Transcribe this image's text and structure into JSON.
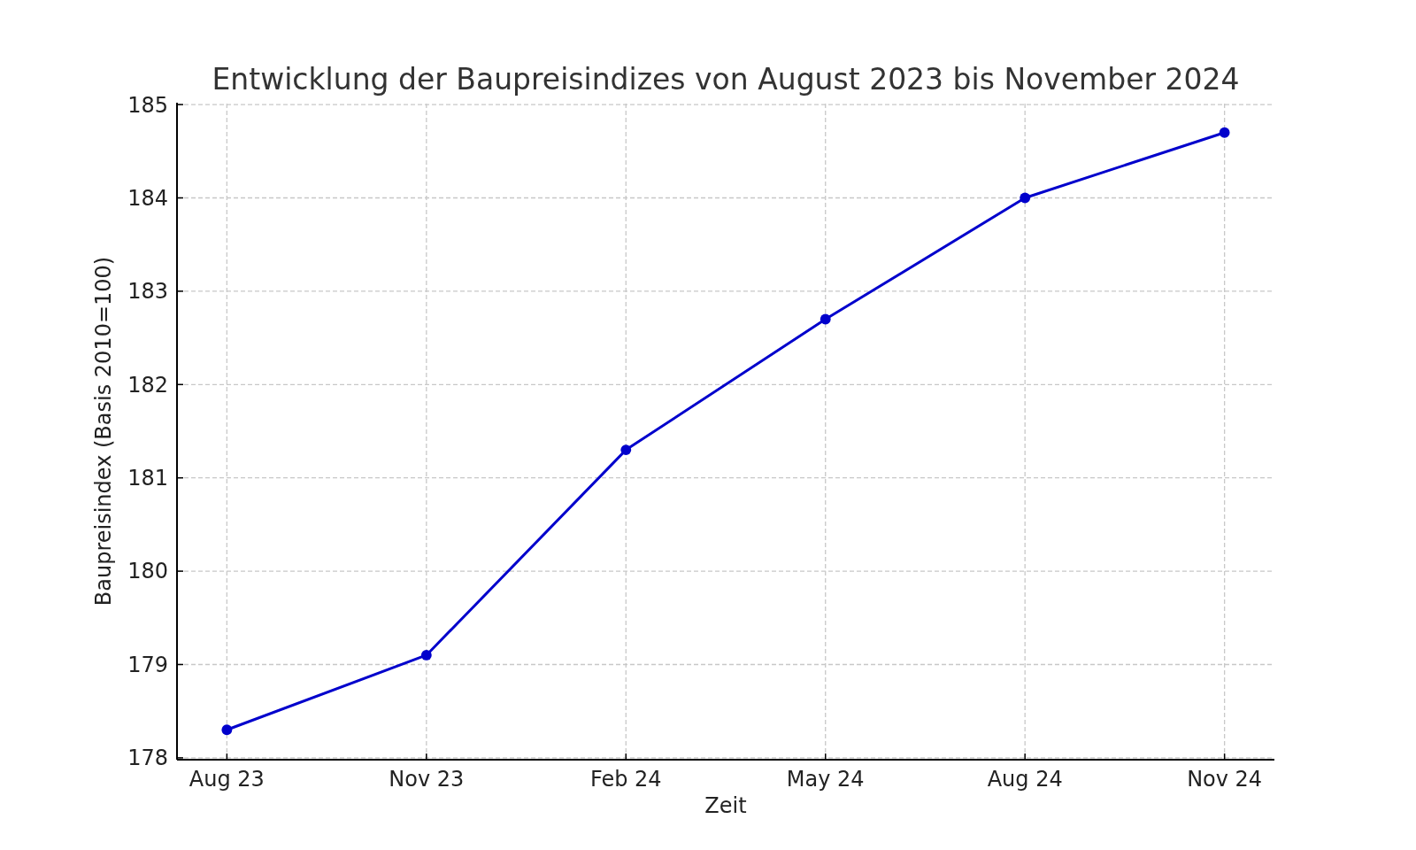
{
  "chart_data": {
    "type": "line",
    "title": "Entwicklung der Baupreisindizes von August 2023 bis November 2024",
    "xlabel": "Zeit",
    "ylabel": "Baupreisindex (Basis 2010=100)",
    "categories": [
      "Aug 23",
      "Nov 23",
      "Feb 24",
      "May 24",
      "Aug 24",
      "Nov 24"
    ],
    "series": [
      {
        "color": "#0000cc",
        "values": [
          178.3,
          179.1,
          181.3,
          182.7,
          184.0,
          184.7
        ]
      }
    ],
    "ylim": [
      177.98,
      185.02
    ],
    "yticks": [
      178,
      179,
      180,
      181,
      182,
      183,
      184,
      185
    ],
    "grid": true,
    "marker": "circle",
    "line_style": "solid"
  }
}
